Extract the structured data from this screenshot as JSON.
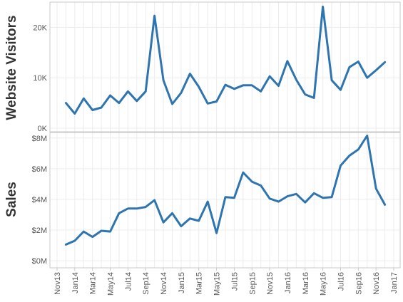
{
  "chart_data": [
    {
      "type": "line",
      "ylabel": "Website Visitors",
      "ylim": [
        0,
        25000
      ],
      "yticks": [
        0,
        10000,
        20000
      ],
      "ytick_labels": [
        "0K",
        "10K",
        "20K"
      ],
      "grid": true,
      "color": "#2e75b0",
      "x": [
        "2013-12",
        "2014-01",
        "2014-02",
        "2014-03",
        "2014-04",
        "2014-05",
        "2014-06",
        "2014-07",
        "2014-08",
        "2014-09",
        "2014-10",
        "2014-11",
        "2014-12",
        "2015-01",
        "2015-02",
        "2015-03",
        "2015-04",
        "2015-05",
        "2015-06",
        "2015-07",
        "2015-08",
        "2015-09",
        "2015-10",
        "2015-11",
        "2015-12",
        "2016-01",
        "2016-02",
        "2016-03",
        "2016-04",
        "2016-05",
        "2016-06",
        "2016-07",
        "2016-08",
        "2016-09",
        "2016-10",
        "2016-11",
        "2016-12"
      ],
      "values": [
        5000,
        2900,
        5900,
        3600,
        4100,
        6500,
        5000,
        7300,
        5400,
        7300,
        22300,
        9500,
        4800,
        7000,
        10800,
        8200,
        4900,
        5300,
        8600,
        7800,
        8500,
        8500,
        7300,
        10300,
        8400,
        13300,
        9600,
        6700,
        6000,
        24100,
        9500,
        7600,
        12100,
        13200,
        10000,
        11500,
        13100
      ]
    },
    {
      "type": "line",
      "ylabel": "Sales",
      "ylim": [
        0,
        8500000
      ],
      "yticks": [
        0,
        2000000,
        4000000,
        6000000,
        8000000
      ],
      "ytick_labels": [
        "$0M",
        "$2M",
        "$4M",
        "$6M",
        "$8M"
      ],
      "grid": true,
      "color": "#2e75b0",
      "x": [
        "2013-12",
        "2014-01",
        "2014-02",
        "2014-03",
        "2014-04",
        "2014-05",
        "2014-06",
        "2014-07",
        "2014-08",
        "2014-09",
        "2014-10",
        "2014-11",
        "2014-12",
        "2015-01",
        "2015-02",
        "2015-03",
        "2015-04",
        "2015-05",
        "2015-06",
        "2015-07",
        "2015-08",
        "2015-09",
        "2015-10",
        "2015-11",
        "2015-12",
        "2016-01",
        "2016-02",
        "2016-03",
        "2016-04",
        "2016-05",
        "2016-06",
        "2016-07",
        "2016-08",
        "2016-09",
        "2016-10",
        "2016-11",
        "2016-12"
      ],
      "values": [
        1050000,
        1300000,
        1900000,
        1550000,
        1950000,
        1900000,
        3100000,
        3400000,
        3400000,
        3500000,
        3950000,
        2500000,
        3100000,
        2250000,
        2750000,
        2600000,
        3850000,
        1800000,
        4150000,
        4100000,
        5750000,
        5150000,
        4900000,
        4050000,
        3850000,
        4200000,
        4350000,
        3800000,
        4400000,
        4100000,
        4150000,
        6200000,
        6850000,
        7250000,
        8150000,
        4700000,
        3650000
      ]
    }
  ],
  "x_axis": {
    "start": "2013-11",
    "end": "2017-01",
    "tick_labels": [
      "Nov13",
      "Jan14",
      "Mar14",
      "May14",
      "Jul14",
      "Sep14",
      "Nov14",
      "Jan15",
      "Mar15",
      "May15",
      "Jul15",
      "Sep15",
      "Nov15",
      "Jan16",
      "Mar16",
      "May16",
      "Jul16",
      "Sep16",
      "Nov16",
      "Jan17"
    ]
  }
}
